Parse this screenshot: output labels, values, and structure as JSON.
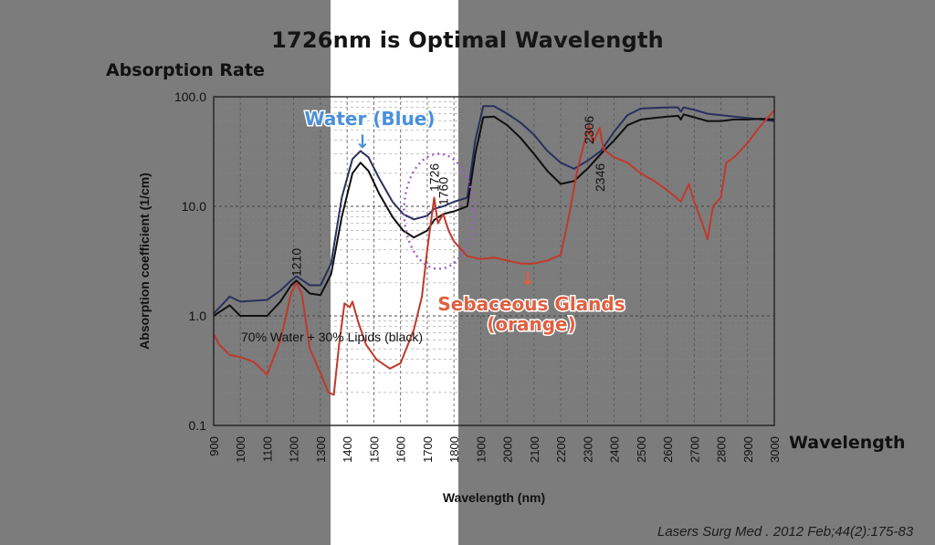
{
  "slide": {
    "title": "1726nm is Optimal Wavelength",
    "absorption_rate_label": "Absorption Rate",
    "wavelength_label": "Wavelength",
    "citation": "Lasers Surg Med . 2012 Feb;44(2):175-83"
  },
  "chart_data": {
    "type": "line",
    "xlabel": "Wavelength (nm)",
    "ylabel": "Absorption coefficient (1/cm)",
    "xlim": [
      900,
      3000
    ],
    "ylim": [
      0.1,
      100
    ],
    "yscale": "log",
    "grid": true,
    "x_ticks": [
      "900",
      "1000",
      "1100",
      "1200",
      "1300",
      "1400",
      "1500",
      "1600",
      "1700",
      "1800",
      "1900",
      "2000",
      "2100",
      "2200",
      "2300",
      "2400",
      "2500",
      "2600",
      "2700",
      "2800",
      "2900",
      "3000"
    ],
    "y_ticks": [
      "0.1",
      "1.0",
      "10.0",
      "100.0"
    ],
    "y_tick_values": [
      0.1,
      1,
      10,
      100
    ],
    "series": [
      {
        "color": "#2a2f5e",
        "points": [
          [
            900,
            1.05
          ],
          [
            960,
            1.5
          ],
          [
            1000,
            1.35
          ],
          [
            1100,
            1.4
          ],
          [
            1150,
            1.7
          ],
          [
            1190,
            2.1
          ],
          [
            1210,
            2.3
          ],
          [
            1260,
            1.9
          ],
          [
            1300,
            1.9
          ],
          [
            1340,
            3
          ],
          [
            1380,
            12
          ],
          [
            1420,
            27
          ],
          [
            1450,
            32
          ],
          [
            1480,
            28
          ],
          [
            1520,
            18
          ],
          [
            1570,
            11
          ],
          [
            1610,
            8.5
          ],
          [
            1650,
            7.6
          ],
          [
            1700,
            8.2
          ],
          [
            1726,
            9.5
          ],
          [
            1760,
            10
          ],
          [
            1800,
            11
          ],
          [
            1850,
            12
          ],
          [
            1880,
            40
          ],
          [
            1910,
            82
          ],
          [
            1950,
            82
          ],
          [
            2000,
            70
          ],
          [
            2050,
            58
          ],
          [
            2100,
            45
          ],
          [
            2150,
            32
          ],
          [
            2200,
            25
          ],
          [
            2250,
            22
          ],
          [
            2300,
            26
          ],
          [
            2350,
            32
          ],
          [
            2400,
            48
          ],
          [
            2450,
            68
          ],
          [
            2500,
            78
          ],
          [
            2550,
            79
          ],
          [
            2600,
            80
          ],
          [
            2640,
            80
          ],
          [
            2650,
            73
          ],
          [
            2660,
            80
          ],
          [
            2700,
            76
          ],
          [
            2750,
            70
          ],
          [
            2800,
            68
          ],
          [
            2850,
            66
          ],
          [
            2900,
            64
          ],
          [
            2950,
            62
          ],
          [
            3000,
            60
          ]
        ]
      },
      {
        "color": "#0f0f0f",
        "points": [
          [
            900,
            1.0
          ],
          [
            960,
            1.25
          ],
          [
            1000,
            1.0
          ],
          [
            1100,
            1.0
          ],
          [
            1150,
            1.35
          ],
          [
            1190,
            1.9
          ],
          [
            1210,
            2.1
          ],
          [
            1260,
            1.6
          ],
          [
            1300,
            1.55
          ],
          [
            1340,
            2.4
          ],
          [
            1380,
            8
          ],
          [
            1420,
            20
          ],
          [
            1450,
            25
          ],
          [
            1480,
            21
          ],
          [
            1520,
            13
          ],
          [
            1570,
            8
          ],
          [
            1610,
            6
          ],
          [
            1650,
            5.2
          ],
          [
            1700,
            6
          ],
          [
            1726,
            7.5
          ],
          [
            1760,
            8.5
          ],
          [
            1800,
            9
          ],
          [
            1850,
            10
          ],
          [
            1880,
            30
          ],
          [
            1910,
            65
          ],
          [
            1950,
            66
          ],
          [
            2000,
            55
          ],
          [
            2050,
            42
          ],
          [
            2100,
            30
          ],
          [
            2150,
            21
          ],
          [
            2200,
            16
          ],
          [
            2250,
            17
          ],
          [
            2300,
            22
          ],
          [
            2350,
            30
          ],
          [
            2400,
            40
          ],
          [
            2450,
            55
          ],
          [
            2500,
            62
          ],
          [
            2550,
            64
          ],
          [
            2600,
            66
          ],
          [
            2640,
            67
          ],
          [
            2650,
            62
          ],
          [
            2660,
            69
          ],
          [
            2700,
            65
          ],
          [
            2750,
            60
          ],
          [
            2800,
            60
          ],
          [
            2850,
            62
          ],
          [
            2900,
            62
          ],
          [
            2950,
            63
          ],
          [
            3000,
            62
          ]
        ]
      },
      {
        "color": "#c0392b",
        "points": [
          [
            900,
            0.68
          ],
          [
            920,
            0.55
          ],
          [
            960,
            0.44
          ],
          [
            1000,
            0.42
          ],
          [
            1050,
            0.38
          ],
          [
            1100,
            0.29
          ],
          [
            1150,
            0.6
          ],
          [
            1190,
            1.6
          ],
          [
            1210,
            2.0
          ],
          [
            1230,
            1.6
          ],
          [
            1260,
            0.5
          ],
          [
            1300,
            0.3
          ],
          [
            1330,
            0.2
          ],
          [
            1350,
            0.19
          ],
          [
            1370,
            0.55
          ],
          [
            1390,
            1.3
          ],
          [
            1410,
            1.2
          ],
          [
            1420,
            1.35
          ],
          [
            1440,
            0.9
          ],
          [
            1470,
            0.55
          ],
          [
            1510,
            0.4
          ],
          [
            1560,
            0.33
          ],
          [
            1600,
            0.37
          ],
          [
            1650,
            0.75
          ],
          [
            1680,
            1.5
          ],
          [
            1700,
            4
          ],
          [
            1726,
            12
          ],
          [
            1740,
            7
          ],
          [
            1760,
            8.5
          ],
          [
            1780,
            6
          ],
          [
            1800,
            4.8
          ],
          [
            1850,
            3.5
          ],
          [
            1900,
            3.3
          ],
          [
            1950,
            3.4
          ],
          [
            2000,
            3.2
          ],
          [
            2050,
            3.0
          ],
          [
            2100,
            3.0
          ],
          [
            2150,
            3.2
          ],
          [
            2200,
            3.6
          ],
          [
            2230,
            8
          ],
          [
            2260,
            20
          ],
          [
            2290,
            40
          ],
          [
            2306,
            55
          ],
          [
            2320,
            38
          ],
          [
            2346,
            52
          ],
          [
            2360,
            33
          ],
          [
            2400,
            28
          ],
          [
            2450,
            25
          ],
          [
            2500,
            20
          ],
          [
            2550,
            17
          ],
          [
            2600,
            14
          ],
          [
            2650,
            11
          ],
          [
            2680,
            16
          ],
          [
            2700,
            11
          ],
          [
            2730,
            7
          ],
          [
            2750,
            5
          ],
          [
            2770,
            10
          ],
          [
            2800,
            12
          ],
          [
            2820,
            25
          ],
          [
            2850,
            28
          ],
          [
            2900,
            38
          ],
          [
            2950,
            55
          ],
          [
            3000,
            75
          ]
        ]
      }
    ],
    "annotations": {
      "water": "Water (Blue)",
      "mixture": "70% Water + 30% Lipids (black)",
      "sebaceous": [
        "Sebaceous Glands",
        "(orange)"
      ],
      "peaks": [
        {
          "label": "1210",
          "x": 1210,
          "y": 2.3
        },
        {
          "label": "1726",
          "x": 1726,
          "y": 10
        },
        {
          "label": "1760",
          "x": 1760,
          "y": 10
        },
        {
          "label": "2306",
          "x": 2306,
          "y": 55
        },
        {
          "label": "2346",
          "x": 2346,
          "y": 52
        }
      ],
      "arrow_glyph": "↓",
      "arrow_color_water": "#4a90d9",
      "arrow_color_sebaceous": "#e06040",
      "circle_color": "#a15cc6"
    }
  }
}
